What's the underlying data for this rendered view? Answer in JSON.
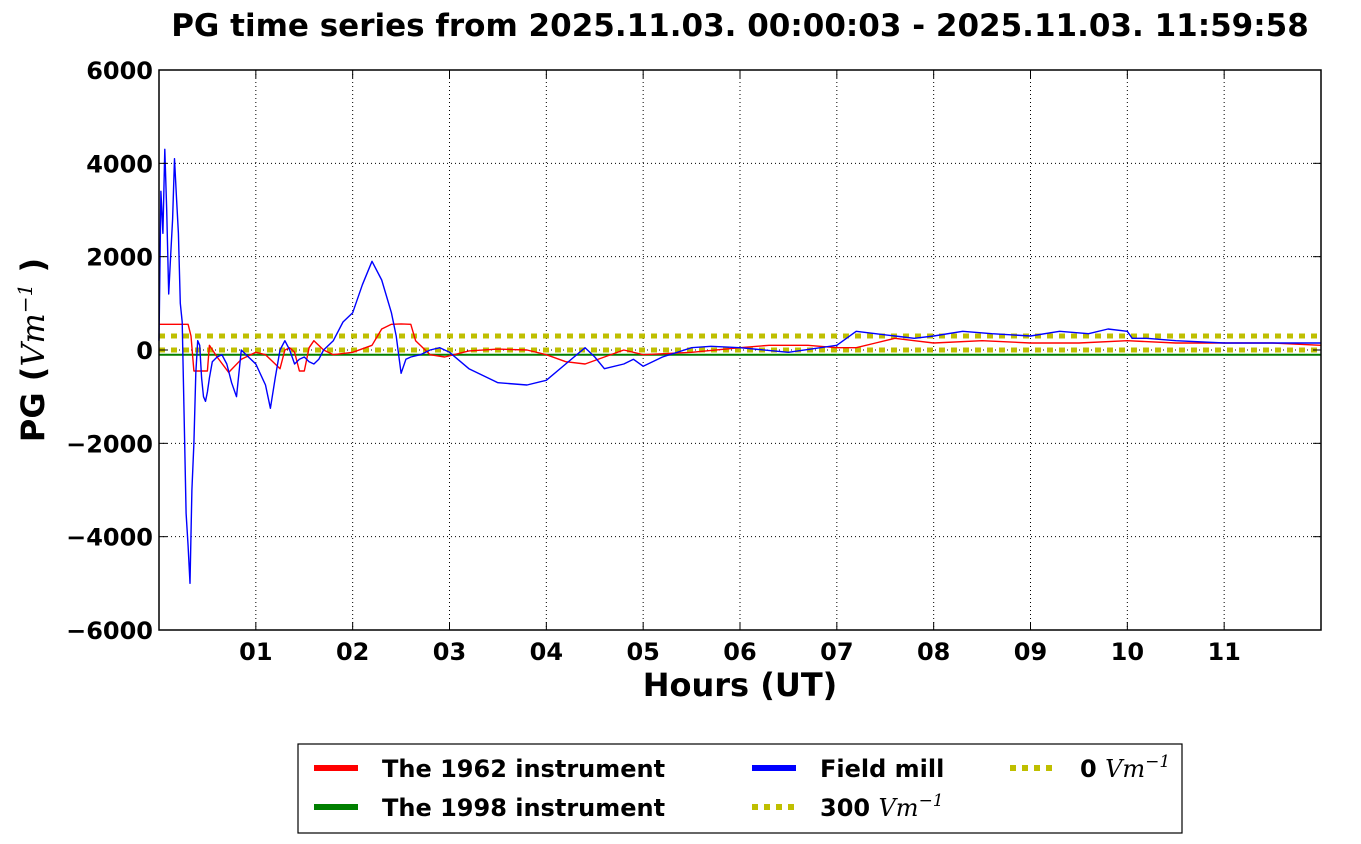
{
  "chart_data": {
    "type": "line",
    "title": "PG time series from 2025.11.03. 00:00:03 - 2025.11.03. 11:59:58",
    "xlabel": "Hours (UT)",
    "ylabel_prefix": "PG (",
    "ylabel_unit_base": "Vm",
    "ylabel_unit_exp": "−1",
    "ylabel_suffix": ")",
    "xlim": [
      0,
      12
    ],
    "ylim": [
      -6000,
      6000
    ],
    "grid": true,
    "xticks": [
      {
        "value": 1,
        "label": "01"
      },
      {
        "value": 2,
        "label": "02"
      },
      {
        "value": 3,
        "label": "03"
      },
      {
        "value": 4,
        "label": "04"
      },
      {
        "value": 5,
        "label": "05"
      },
      {
        "value": 6,
        "label": "06"
      },
      {
        "value": 7,
        "label": "07"
      },
      {
        "value": 8,
        "label": "08"
      },
      {
        "value": 9,
        "label": "09"
      },
      {
        "value": 10,
        "label": "10"
      },
      {
        "value": 11,
        "label": "11"
      }
    ],
    "yticks": [
      {
        "value": 6000,
        "label": "6000"
      },
      {
        "value": 4000,
        "label": "4000"
      },
      {
        "value": 2000,
        "label": "2000"
      },
      {
        "value": 0,
        "label": "0"
      },
      {
        "value": -2000,
        "label": "−2000"
      },
      {
        "value": -4000,
        "label": "−4000"
      },
      {
        "value": -6000,
        "label": "−6000"
      }
    ],
    "legend_position": "below",
    "series": [
      {
        "name": "The 1962 instrument",
        "color": "#ff0000",
        "style": "solid",
        "x": [
          0,
          0.05,
          0.3,
          0.33,
          0.36,
          0.5,
          0.52,
          0.6,
          0.72,
          0.85,
          1.0,
          1.1,
          1.2,
          1.25,
          1.3,
          1.35,
          1.4,
          1.45,
          1.5,
          1.55,
          1.6,
          1.7,
          1.8,
          2.0,
          2.2,
          2.3,
          2.4,
          2.5,
          2.6,
          2.65,
          2.8,
          2.95,
          3.2,
          3.5,
          3.8,
          4.0,
          4.2,
          4.4,
          4.6,
          4.8,
          5.0,
          5.5,
          6.0,
          6.3,
          6.7,
          7.0,
          7.2,
          7.4,
          7.6,
          7.8,
          8.0,
          8.5,
          9.0,
          9.5,
          10.0,
          10.5,
          11.0,
          11.5,
          12.0
        ],
        "values": [
          550,
          550,
          550,
          300,
          -450,
          -450,
          100,
          -150,
          -480,
          -200,
          -50,
          -100,
          -300,
          -400,
          0,
          50,
          -50,
          -450,
          -450,
          50,
          200,
          0,
          -100,
          -50,
          100,
          450,
          550,
          560,
          550,
          200,
          -100,
          -150,
          -20,
          20,
          0,
          -100,
          -250,
          -300,
          -150,
          0,
          -100,
          -50,
          50,
          100,
          100,
          50,
          50,
          150,
          250,
          200,
          150,
          200,
          150,
          150,
          200,
          150,
          150,
          150,
          100
        ]
      },
      {
        "name": "The 1998 instrument",
        "color": "#007f00",
        "style": "solid",
        "x": [
          0,
          12
        ],
        "values": [
          -100,
          -100
        ]
      },
      {
        "name": "Field mill",
        "color": "#0000ff",
        "style": "solid",
        "x": [
          0,
          0.02,
          0.04,
          0.06,
          0.08,
          0.1,
          0.12,
          0.14,
          0.16,
          0.18,
          0.2,
          0.22,
          0.24,
          0.26,
          0.28,
          0.3,
          0.32,
          0.34,
          0.36,
          0.38,
          0.4,
          0.42,
          0.44,
          0.46,
          0.48,
          0.5,
          0.52,
          0.55,
          0.6,
          0.65,
          0.7,
          0.75,
          0.8,
          0.85,
          0.9,
          1.0,
          1.1,
          1.15,
          1.2,
          1.25,
          1.3,
          1.35,
          1.4,
          1.45,
          1.5,
          1.55,
          1.6,
          1.65,
          1.7,
          1.8,
          1.9,
          2.0,
          2.1,
          2.2,
          2.3,
          2.4,
          2.45,
          2.5,
          2.55,
          2.6,
          2.7,
          2.8,
          2.9,
          3.0,
          3.2,
          3.5,
          3.8,
          4.0,
          4.2,
          4.4,
          4.5,
          4.6,
          4.8,
          4.9,
          5.0,
          5.2,
          5.5,
          5.7,
          6.0,
          6.5,
          7.0,
          7.2,
          7.4,
          7.6,
          7.8,
          8.0,
          8.3,
          8.6,
          9.0,
          9.3,
          9.6,
          9.8,
          10.0,
          10.05,
          10.2,
          10.5,
          11.0,
          11.5,
          12.0
        ],
        "values": [
          200,
          3400,
          2500,
          4300,
          3000,
          1200,
          2000,
          2800,
          4100,
          3300,
          2500,
          1000,
          600,
          -1500,
          -3500,
          -4200,
          -5000,
          -3000,
          -2000,
          -500,
          200,
          100,
          -600,
          -1000,
          -1100,
          -900,
          -600,
          -250,
          -150,
          -100,
          -300,
          -700,
          -1000,
          0,
          -100,
          -300,
          -750,
          -1250,
          -600,
          0,
          200,
          0,
          -300,
          -200,
          -150,
          -250,
          -300,
          -200,
          0,
          200,
          600,
          800,
          1400,
          1900,
          1500,
          800,
          300,
          -500,
          -200,
          -150,
          -100,
          0,
          50,
          -50,
          -400,
          -700,
          -750,
          -650,
          -300,
          50,
          -150,
          -400,
          -300,
          -200,
          -350,
          -150,
          50,
          80,
          50,
          -50,
          100,
          400,
          350,
          300,
          250,
          300,
          400,
          350,
          300,
          400,
          350,
          450,
          400,
          250,
          250,
          200,
          150,
          150,
          150
        ]
      },
      {
        "name": "300 Vm−1",
        "name_number": "300",
        "name_unit_base": "Vm",
        "name_unit_exp": "−1",
        "color": "#bfbf00",
        "style": "dotted",
        "x": [
          0,
          12
        ],
        "values": [
          300,
          300
        ]
      },
      {
        "name": "0 Vm−1",
        "name_number": "0",
        "name_unit_base": "Vm",
        "name_unit_exp": "−1",
        "color": "#bfbf00",
        "style": "dotted",
        "x": [
          0,
          12
        ],
        "values": [
          0,
          0
        ]
      }
    ]
  }
}
